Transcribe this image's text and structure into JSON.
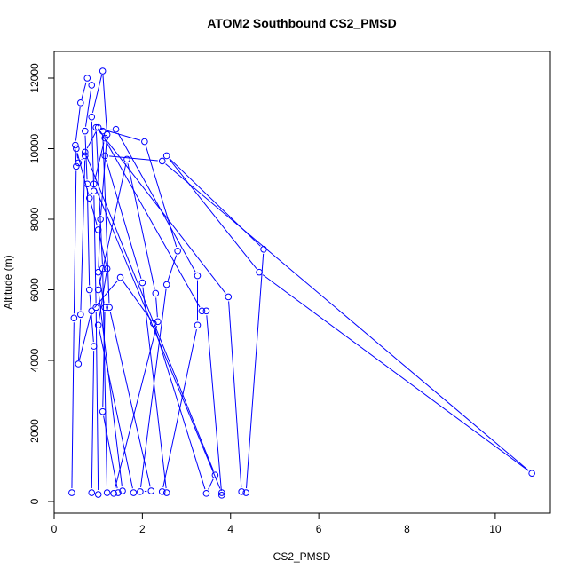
{
  "chart_data": {
    "type": "scatter-line",
    "title": "ATOM2 Southbound CS2_PMSD",
    "x_label": "CS2_PMSD",
    "y_label": "Altitude (m)",
    "color": "#0000ff",
    "xlim": [
      0,
      11.25
    ],
    "ylim": [
      -327,
      12755
    ],
    "xticks": [
      0,
      2,
      4,
      6,
      8,
      10
    ],
    "yticks": [
      0,
      2000,
      4000,
      6000,
      8000,
      10000,
      12000
    ],
    "x": [
      0.4,
      0.45,
      0.5,
      0.48,
      0.6,
      0.75,
      0.85,
      0.7,
      0.75,
      0.8,
      0.9,
      0.85,
      1.0,
      0.95,
      0.9,
      0.85,
      1.1,
      1.2,
      1.05,
      1.0,
      1.15,
      1.1,
      1.45,
      1.55,
      1.0,
      1.65,
      2.3,
      2.35,
      1.35,
      1.2,
      1.1,
      0.95,
      2.05,
      2.8,
      2.55,
      1.95,
      2.2,
      1.25,
      1.1,
      1.4,
      3.25,
      3.25,
      2.45,
      2.55,
      2.0,
      1.15,
      2.45,
      10.83,
      4.65,
      2.55,
      4.75,
      4.35,
      4.25,
      3.95,
      1.15,
      0.9,
      3.8,
      3.8,
      3.45,
      3.35,
      1.0,
      0.7,
      3.65,
      3.45,
      2.25,
      1.5,
      0.85,
      0.55,
      0.6,
      0.7,
      0.55,
      0.5,
      0.8,
      1.0,
      1.2,
      1.0,
      1.8
    ],
    "values": [
      250,
      5200,
      9500,
      10100,
      11300,
      12000,
      11800,
      10500,
      9000,
      6000,
      4400,
      250,
      200,
      5500,
      8800,
      10900,
      12200,
      10400,
      8000,
      6500,
      5500,
      2550,
      250,
      300,
      6000,
      9700,
      5900,
      5100,
      230,
      250,
      6600,
      10600,
      10200,
      7100,
      6150,
      280,
      300,
      5500,
      10500,
      10550,
      6400,
      5000,
      280,
      250,
      6200,
      9800,
      9650,
      800,
      6500,
      9800,
      7150,
      250,
      280,
      5800,
      10300,
      9000,
      250,
      180,
      5400,
      5400,
      10600,
      9900,
      750,
      230,
      5050,
      6350,
      5400,
      3900,
      5300,
      9800,
      9600,
      10000,
      8600,
      7700,
      6600,
      5000,
      250
    ]
  }
}
